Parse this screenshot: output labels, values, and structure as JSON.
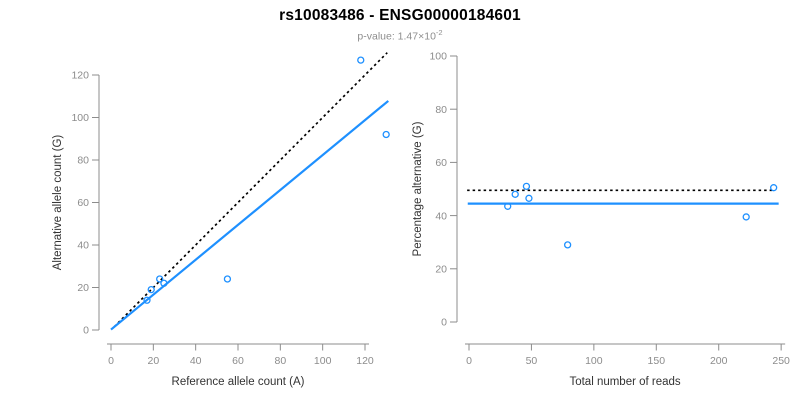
{
  "header": {
    "title": "rs10083486 - ENSG00000184601",
    "pvalue_main": "p-value: 1.47×10",
    "pvalue_exponent": "-2"
  },
  "colors": {
    "accent_blue": "#1E90FF",
    "identity_black": "#000000",
    "axis": "#8c8c8c",
    "tick_label": "#8c8c8c",
    "axis_title": "#333333",
    "background": "#ffffff"
  },
  "chart_data": [
    {
      "type": "scatter",
      "name": "allele-counts-scatter",
      "xlabel": "Reference allele count (A)",
      "ylabel": "Alternative allele count (G)",
      "xlim": [
        0,
        131
      ],
      "ylim": [
        0,
        128
      ],
      "xticks": [
        0,
        20,
        40,
        60,
        80,
        100,
        120
      ],
      "yticks": [
        0,
        20,
        40,
        60,
        80,
        100,
        120
      ],
      "grid": false,
      "legend": "none",
      "points": [
        [
          17,
          14
        ],
        [
          19,
          19
        ],
        [
          23,
          24
        ],
        [
          25,
          22
        ],
        [
          55,
          24
        ],
        [
          118,
          127
        ],
        [
          130,
          92
        ]
      ],
      "lines": [
        {
          "name": "identity-line-dotted",
          "dash": true,
          "color": "#000000",
          "x": [
            1.5,
            130.5
          ],
          "y": [
            1.5,
            130.5
          ]
        },
        {
          "name": "regression-line",
          "dash": false,
          "color": "#1E90FF",
          "x": [
            0,
            131
          ],
          "y": [
            0.2,
            107.8
          ]
        }
      ]
    },
    {
      "type": "scatter",
      "name": "percentage-vs-reads-scatter",
      "xlabel": "Total number of reads",
      "ylabel": "Percentage alternative (G)",
      "xlim": [
        0,
        252
      ],
      "ylim": [
        0,
        100
      ],
      "xticks": [
        0,
        50,
        100,
        150,
        200,
        250
      ],
      "yticks": [
        0,
        20,
        40,
        60,
        80,
        100
      ],
      "grid": false,
      "legend": "none",
      "points": [
        [
          31,
          43.5
        ],
        [
          37,
          48
        ],
        [
          46,
          51
        ],
        [
          48,
          46.5
        ],
        [
          79,
          29
        ],
        [
          222,
          39.5
        ],
        [
          244,
          50.5
        ]
      ],
      "lines": [
        {
          "name": "null-50pct-line-dotted",
          "dash": true,
          "color": "#000000",
          "x": [
            -1.5,
            243.5
          ],
          "y": [
            49.5,
            49.5
          ]
        },
        {
          "name": "fitted-percentage-line",
          "dash": false,
          "color": "#1E90FF",
          "x": [
            -1,
            248
          ],
          "y": [
            44.5,
            44.5
          ]
        }
      ]
    }
  ]
}
